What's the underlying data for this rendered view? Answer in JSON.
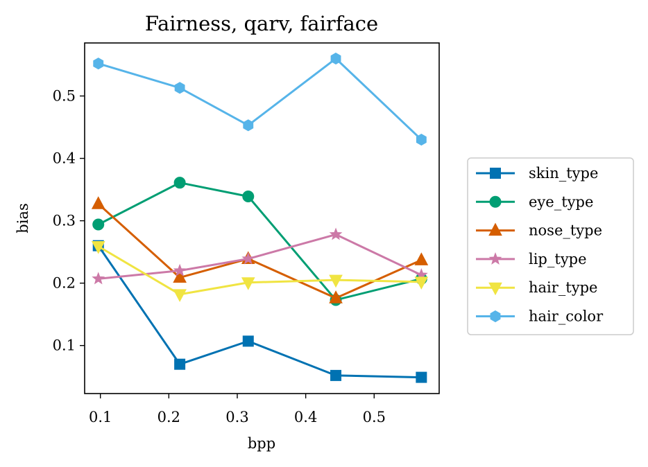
{
  "chart_data": {
    "type": "line",
    "title": "Fairness, qarv, fairface",
    "xlabel": "bpp",
    "ylabel": "bias",
    "xlim": [
      0.077,
      0.595
    ],
    "ylim": [
      0.023,
      0.585
    ],
    "xticks": [
      0.1,
      0.2,
      0.3,
      0.4,
      0.5
    ],
    "xtick_labels": [
      "0.1",
      "0.2",
      "0.3",
      "0.4",
      "0.5"
    ],
    "yticks": [
      0.1,
      0.2,
      0.3,
      0.4,
      0.5
    ],
    "ytick_labels": [
      "0.1",
      "0.2",
      "0.3",
      "0.4",
      "0.5"
    ],
    "grid": false,
    "legend_position": "outside-right",
    "x": [
      0.097,
      0.216,
      0.316,
      0.444,
      0.569
    ],
    "series": [
      {
        "name": "skin_type",
        "color": "#0072B2",
        "marker": "square",
        "values": [
          0.26,
          0.07,
          0.107,
          0.052,
          0.049
        ]
      },
      {
        "name": "eye_type",
        "color": "#009E73",
        "marker": "circle",
        "values": [
          0.294,
          0.361,
          0.339,
          0.173,
          0.207
        ]
      },
      {
        "name": "nose_type",
        "color": "#D55E00",
        "marker": "triangle-up",
        "values": [
          0.327,
          0.209,
          0.239,
          0.176,
          0.237
        ]
      },
      {
        "name": "lip_type",
        "color": "#CC79A7",
        "marker": "star",
        "values": [
          0.207,
          0.22,
          0.239,
          0.278,
          0.213
        ]
      },
      {
        "name": "hair_type",
        "color": "#F0E442",
        "marker": "triangle-down",
        "values": [
          0.259,
          0.182,
          0.201,
          0.205,
          0.202
        ]
      },
      {
        "name": "hair_color",
        "color": "#56B4E9",
        "marker": "hexagon",
        "values": [
          0.552,
          0.513,
          0.453,
          0.56,
          0.43
        ]
      }
    ]
  }
}
